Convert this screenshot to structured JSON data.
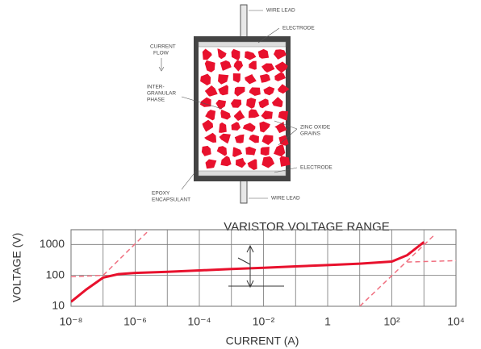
{
  "diagram": {
    "labels": [
      [
        "WIRE LEAD"
      ],
      [
        "ELECTRODE"
      ],
      [
        "CURRENT",
        "FLOW"
      ],
      [
        "INTER-",
        "GRANULAR",
        "PHASE"
      ],
      [
        "ZINC OXIDE",
        "GRAINS"
      ],
      [
        "ELECTRODE"
      ],
      [
        "EPOXY",
        "ENCAPSULANT"
      ],
      [
        "WIRE LEAD"
      ]
    ]
  },
  "chart_data": {
    "type": "line",
    "annotation": "VARISTOR VOLTAGE RANGE",
    "x_label": "CURRENT (A)",
    "y_label": "VOLTAGE (V)",
    "xlog": true,
    "ylog": true,
    "grid": true,
    "xlim": [
      1e-08,
      10000
    ],
    "ylim": [
      10,
      3000
    ],
    "xticks": [
      {
        "value": 1e-08,
        "label": "10⁻⁸"
      },
      {
        "value": 1e-06,
        "label": "10⁻⁶"
      },
      {
        "value": 0.0001,
        "label": "10⁻⁴"
      },
      {
        "value": 0.01,
        "label": "10⁻²"
      },
      1,
      {
        "value": 100,
        "label": "10²"
      },
      {
        "value": 10000,
        "label": "10⁴"
      }
    ],
    "yticks": [
      10,
      100,
      1000
    ],
    "series": [
      {
        "color": "#e8112d",
        "style": "solid",
        "x": [
          1e-08,
          3e-08,
          1e-07,
          3e-07,
          1e-06,
          1e-05,
          0.0001,
          0.001,
          0.01,
          0.1,
          1,
          10,
          100,
          300,
          1000
        ],
        "values": [
          14,
          35,
          85,
          110,
          120,
          130,
          145,
          160,
          175,
          195,
          215,
          240,
          280,
          450,
          1200
        ]
      },
      {
        "color": "#f07080",
        "style": "dashed",
        "x": [
          1e-08,
          1e-07,
          2.8e-06
        ],
        "values": [
          90,
          100,
          3000
        ]
      },
      {
        "color": "#f07080",
        "style": "dashed",
        "x": [
          10,
          2300
        ],
        "values": [
          10,
          2200
        ]
      },
      {
        "color": "#f07080",
        "style": "dashed",
        "x": [
          300,
          10000
        ],
        "values": [
          270,
          300
        ]
      }
    ]
  }
}
